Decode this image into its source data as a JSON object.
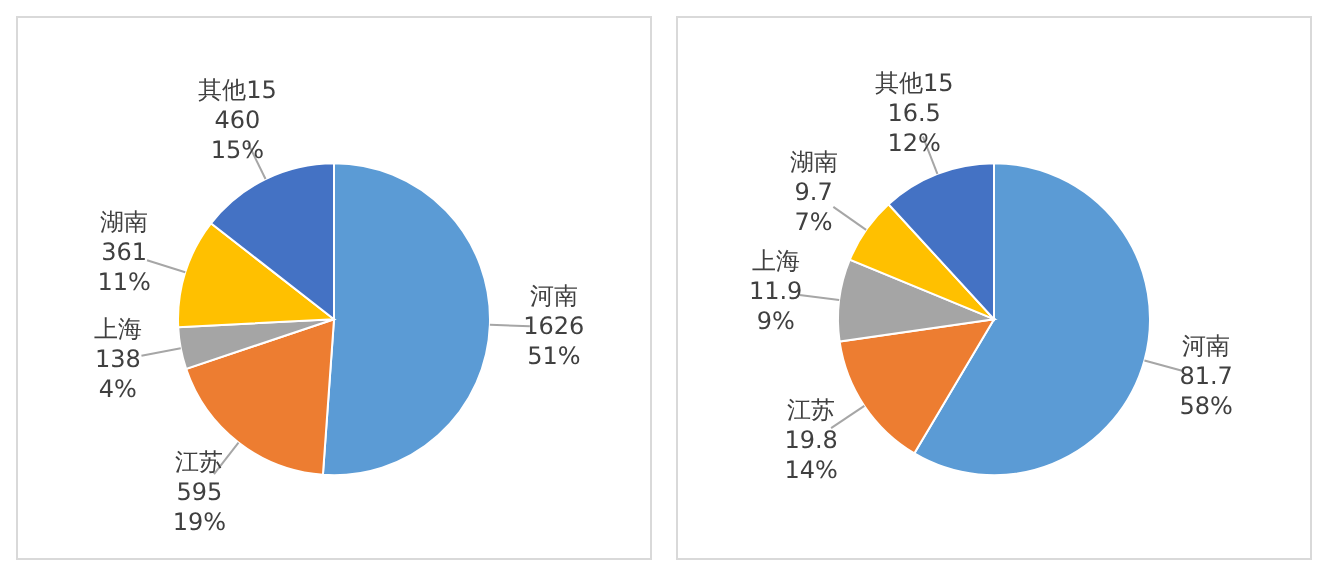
{
  "chart_data": [
    {
      "type": "pie",
      "categories": [
        "河南",
        "江苏",
        "上海",
        "湖南",
        "其他15"
      ],
      "values": [
        1626,
        595,
        138,
        361,
        460
      ],
      "annotations": [
        "51%",
        "19%",
        "4%",
        "11%",
        "15%"
      ],
      "data_labels": true,
      "colors": [
        "#5b9bd5",
        "#ed7d31",
        "#a5a5a5",
        "#ffc000",
        "#4472c4"
      ],
      "legend": false
    },
    {
      "type": "pie",
      "categories": [
        "河南",
        "江苏",
        "上海",
        "湖南",
        "其他15"
      ],
      "values": [
        81.7,
        19.8,
        11.9,
        9.7,
        16.5
      ],
      "annotations": [
        "58%",
        "14%",
        "9%",
        "7%",
        "12%"
      ],
      "data_labels": true,
      "colors": [
        "#5b9bd5",
        "#ed7d31",
        "#a5a5a5",
        "#ffc000",
        "#4472c4"
      ],
      "legend": false
    }
  ]
}
